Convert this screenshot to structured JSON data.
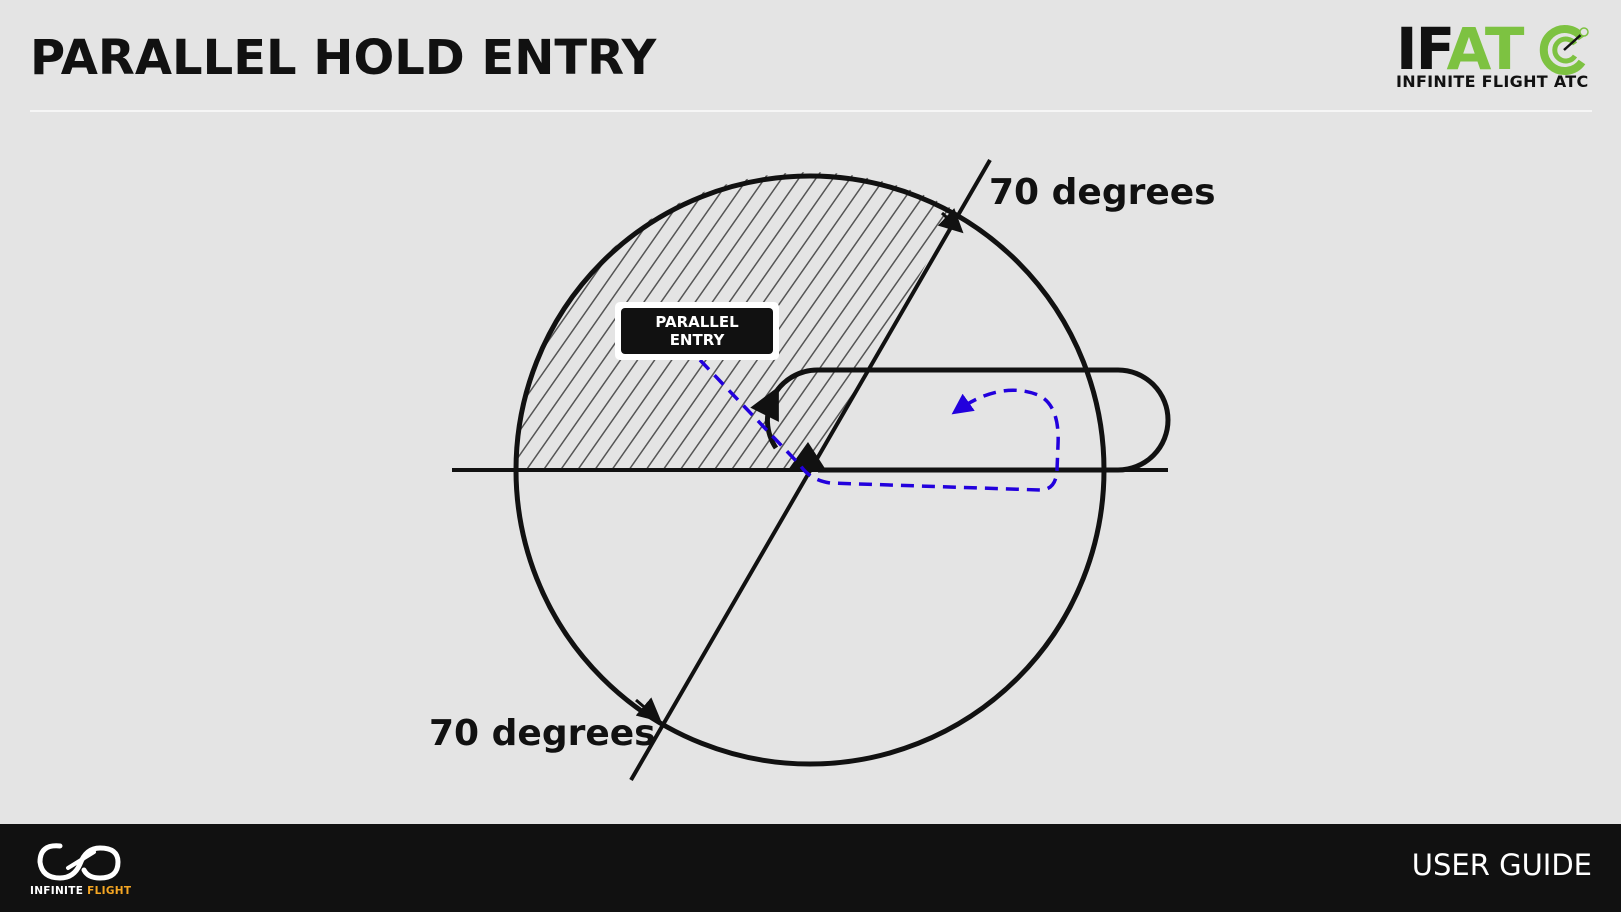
{
  "header": {
    "title": "PARALLEL HOLD ENTRY",
    "brand_mark_left": "IF",
    "brand_mark_right": "AT",
    "brand_subtitle": "INFINITE FLIGHT ATC"
  },
  "diagram": {
    "top_angle_label": "70 degrees",
    "bottom_angle_label": "70 degrees",
    "sector_label_line1": "PARALLEL",
    "sector_label_line2": "ENTRY"
  },
  "footer": {
    "brand_left": "INFINITE ",
    "brand_right": "FLIGHT",
    "right_text": "USER GUIDE"
  },
  "colors": {
    "background": "#e4e4e4",
    "ink": "#111111",
    "entry_path": "#2200dd",
    "ifatc_green": "#7dc241",
    "footer_accent": "#f5a623"
  }
}
